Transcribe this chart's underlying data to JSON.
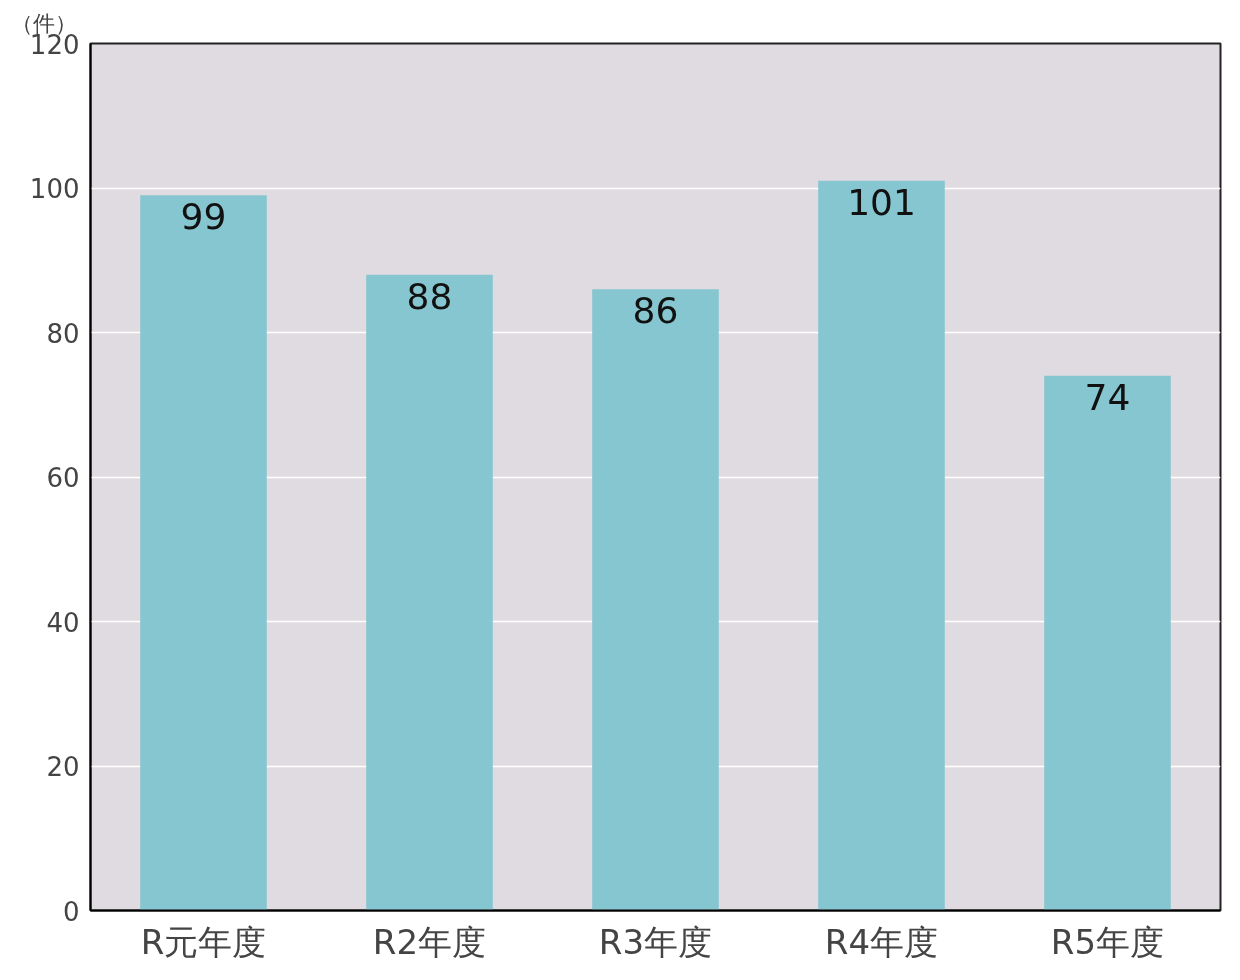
{
  "chart_data": {
    "type": "bar",
    "ylabel": "（件）",
    "categories": [
      "R元年度",
      "R2年度",
      "R3年度",
      "R4年度",
      "R5年度"
    ],
    "values": [
      99,
      88,
      86,
      101,
      74
    ],
    "color": "#86c6d0",
    "ylim": [
      0,
      120
    ],
    "yticks": [
      0,
      20,
      40,
      60,
      80,
      100,
      120
    ],
    "grid": "y",
    "data_labels": true
  }
}
